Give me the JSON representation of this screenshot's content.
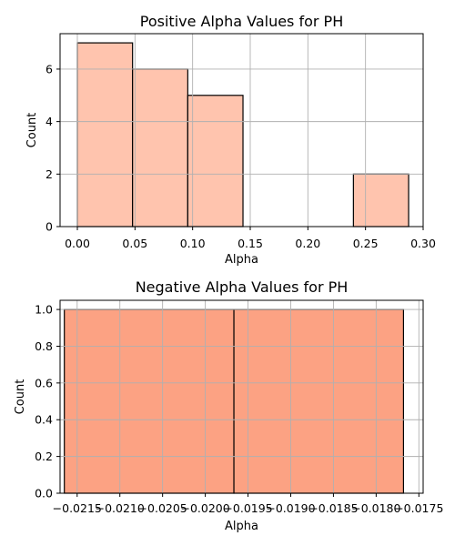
{
  "chart_data": [
    {
      "type": "bar",
      "title": "Positive Alpha Values for PH",
      "xlabel": "Alpha",
      "ylabel": "Count",
      "xlim": [
        -0.015,
        0.3
      ],
      "ylim": [
        0,
        7.35
      ],
      "xticks": [
        0.0,
        0.05,
        0.1,
        0.15,
        0.2,
        0.25,
        0.3
      ],
      "xtick_labels": [
        "0.00",
        "0.05",
        "0.10",
        "0.15",
        "0.20",
        "0.25",
        "0.30"
      ],
      "yticks": [
        0,
        2,
        4,
        6
      ],
      "ytick_labels": [
        "0",
        "2",
        "4",
        "6"
      ],
      "bins": [
        {
          "x0": 0.0,
          "x1": 0.0479,
          "count": 7
        },
        {
          "x0": 0.0479,
          "x1": 0.0958,
          "count": 6
        },
        {
          "x0": 0.0958,
          "x1": 0.1437,
          "count": 5
        },
        {
          "x0": 0.1437,
          "x1": 0.1916,
          "count": 0
        },
        {
          "x0": 0.1916,
          "x1": 0.2395,
          "count": 0
        },
        {
          "x0": 0.2395,
          "x1": 0.2874,
          "count": 2
        }
      ],
      "color": "#ffc4ae",
      "grid": true
    },
    {
      "type": "bar",
      "title": "Negative Alpha Values for PH",
      "xlabel": "Alpha",
      "ylabel": "Count",
      "xlim": [
        -0.0217,
        -0.01745
      ],
      "ylim": [
        0,
        1.05
      ],
      "xticks": [
        -0.0215,
        -0.021,
        -0.0205,
        -0.02,
        -0.0195,
        -0.019,
        -0.0185,
        -0.018,
        -0.0175
      ],
      "xtick_labels": [
        "−0.0215",
        "−0.0210",
        "−0.0205",
        "−0.0200",
        "−0.0195",
        "−0.0190",
        "−0.0185",
        "−0.0180",
        "−0.0175"
      ],
      "yticks": [
        0,
        0.2,
        0.4,
        0.6,
        0.8,
        1.0
      ],
      "ytick_labels": [
        "0.0",
        "0.2",
        "0.4",
        "0.6",
        "0.8",
        "1.0"
      ],
      "bins": [
        {
          "x0": -0.02165,
          "x1": -0.019665,
          "count": 1
        },
        {
          "x0": -0.019665,
          "x1": -0.01768,
          "count": 1
        }
      ],
      "color": "#fca283",
      "grid": true
    }
  ]
}
